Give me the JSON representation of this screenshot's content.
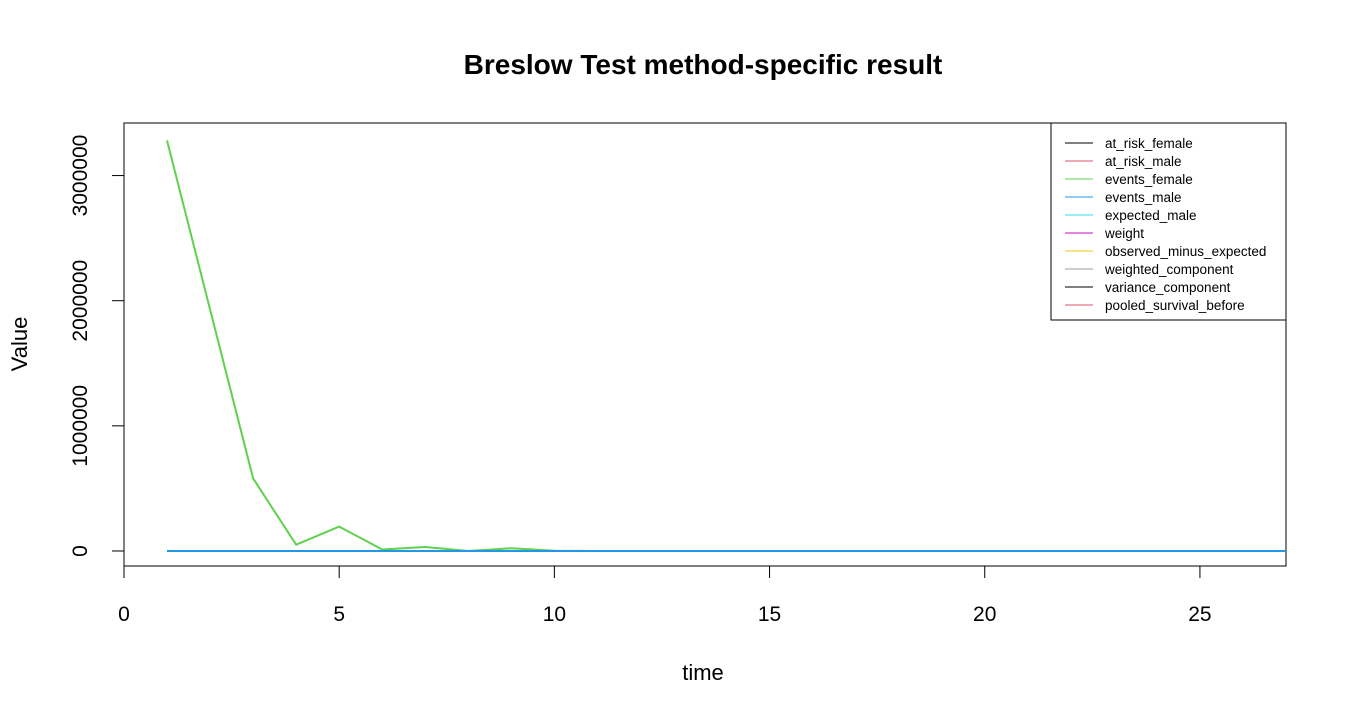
{
  "chart_data": {
    "type": "line",
    "title": "Breslow Test method-specific result",
    "xlabel": "time",
    "ylabel": "Value",
    "xlim": [
      0,
      27
    ],
    "ylim": [
      -120000,
      3420000
    ],
    "x_ticks": [
      0,
      5,
      10,
      15,
      20,
      25
    ],
    "y_ticks": [
      0,
      1000000,
      2000000,
      3000000
    ],
    "legend_position": "top-right",
    "grid": false,
    "x": [
      1,
      2,
      3,
      4,
      5,
      6,
      7,
      8,
      9,
      10,
      11,
      12,
      13,
      14,
      15,
      16,
      17,
      18,
      19,
      20,
      21,
      22,
      23,
      24,
      25,
      26,
      27
    ],
    "series": [
      {
        "name": "at_risk_female",
        "color": "#000000",
        "values": [
          26,
          25,
          24,
          23,
          22,
          21,
          20,
          19,
          18,
          17,
          16,
          15,
          14,
          13,
          12,
          11,
          10,
          9,
          8,
          7,
          6,
          5,
          4,
          3,
          2,
          1,
          1
        ]
      },
      {
        "name": "at_risk_male",
        "color": "#DF536B",
        "values": [
          26,
          25,
          24,
          23,
          22,
          21,
          20,
          19,
          18,
          17,
          16,
          15,
          14,
          13,
          12,
          11,
          10,
          9,
          8,
          7,
          6,
          5,
          4,
          3,
          2,
          1,
          1
        ]
      },
      {
        "name": "events_female",
        "color": "#61D04F",
        "values": [
          3280000,
          1930000,
          580000,
          50000,
          195000,
          12000,
          32000,
          0,
          22000,
          2000,
          0,
          0,
          0,
          0,
          0,
          0,
          0,
          0,
          0,
          0,
          0,
          0,
          0,
          0,
          0,
          0,
          0
        ]
      },
      {
        "name": "events_male",
        "color": "#2297E6",
        "values": [
          1,
          1,
          1,
          1,
          1,
          1,
          1,
          1,
          1,
          1,
          1,
          1,
          1,
          1,
          1,
          1,
          1,
          1,
          1,
          1,
          1,
          1,
          1,
          1,
          1,
          1,
          1
        ]
      },
      {
        "name": "expected_male",
        "color": "#28E2E5",
        "values": [
          1,
          1,
          1,
          1,
          1,
          1,
          1,
          1,
          1,
          1,
          1,
          1,
          1,
          1,
          1,
          1,
          1,
          1,
          1,
          1,
          1,
          1,
          1,
          1,
          1,
          1,
          1
        ]
      },
      {
        "name": "weight",
        "color": "#CD0BBC",
        "values": [
          26,
          25,
          24,
          23,
          22,
          21,
          20,
          19,
          18,
          17,
          16,
          15,
          14,
          13,
          12,
          11,
          10,
          9,
          8,
          7,
          6,
          5,
          4,
          3,
          2,
          1,
          1
        ]
      },
      {
        "name": "observed_minus_expected",
        "color": "#F5C710",
        "values": [
          0,
          0,
          0,
          0,
          0,
          0,
          0,
          0,
          0,
          0,
          0,
          0,
          0,
          0,
          0,
          0,
          0,
          0,
          0,
          0,
          0,
          0,
          0,
          0,
          0,
          0,
          0
        ]
      },
      {
        "name": "weighted_component",
        "color": "#9E9E9E",
        "values": [
          0,
          0,
          0,
          0,
          0,
          0,
          0,
          0,
          0,
          0,
          0,
          0,
          0,
          0,
          0,
          0,
          0,
          0,
          0,
          0,
          0,
          0,
          0,
          0,
          0,
          0,
          0
        ]
      },
      {
        "name": "variance_component",
        "color": "#000000",
        "values": [
          0,
          0,
          0,
          0,
          0,
          0,
          0,
          0,
          0,
          0,
          0,
          0,
          0,
          0,
          0,
          0,
          0,
          0,
          0,
          0,
          0,
          0,
          0,
          0,
          0,
          0,
          0
        ]
      },
      {
        "name": "pooled_survival_before",
        "color": "#DF536B",
        "values": [
          1,
          1,
          1,
          1,
          1,
          1,
          1,
          1,
          1,
          1,
          1,
          1,
          1,
          1,
          1,
          1,
          1,
          1,
          1,
          1,
          1,
          1,
          1,
          1,
          1,
          1,
          1
        ]
      }
    ]
  }
}
